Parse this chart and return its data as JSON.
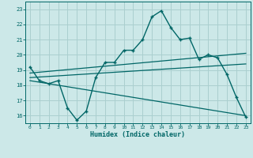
{
  "title": "",
  "xlabel": "Humidex (Indice chaleur)",
  "bg_color": "#cce8e8",
  "grid_color": "#aacfcf",
  "line_color": "#006666",
  "xlim": [
    -0.5,
    23.5
  ],
  "ylim": [
    15.5,
    23.5
  ],
  "xticks": [
    0,
    1,
    2,
    3,
    4,
    5,
    6,
    7,
    8,
    9,
    10,
    11,
    12,
    13,
    14,
    15,
    16,
    17,
    18,
    19,
    20,
    21,
    22,
    23
  ],
  "yticks": [
    16,
    17,
    18,
    19,
    20,
    21,
    22,
    23
  ],
  "curve1_x": [
    0,
    1,
    2,
    3,
    4,
    5,
    6,
    7,
    8,
    9,
    10,
    11,
    12,
    13,
    14,
    15,
    16,
    17,
    18,
    19,
    20,
    21,
    22,
    23
  ],
  "curve1_y": [
    19.2,
    18.3,
    18.1,
    18.3,
    16.5,
    15.7,
    16.3,
    18.5,
    19.5,
    19.5,
    20.3,
    20.3,
    21.0,
    22.5,
    22.9,
    21.8,
    21.0,
    21.1,
    19.7,
    20.0,
    19.8,
    18.7,
    17.2,
    15.9
  ],
  "line2_x": [
    0,
    23
  ],
  "line2_y": [
    18.8,
    20.1
  ],
  "line3_x": [
    0,
    23
  ],
  "line3_y": [
    18.5,
    19.4
  ],
  "line4_x": [
    0,
    23
  ],
  "line4_y": [
    18.3,
    16.0
  ]
}
